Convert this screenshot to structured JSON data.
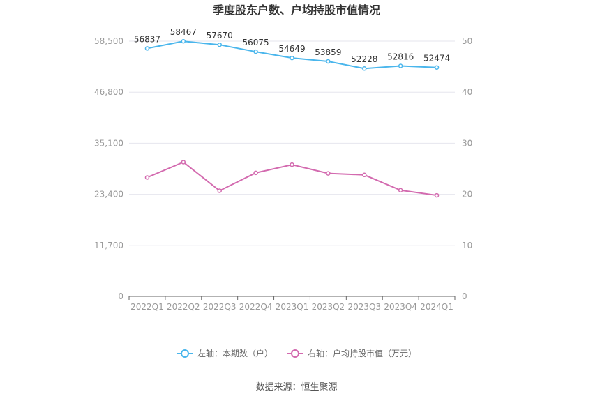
{
  "chart_data": {
    "type": "line",
    "title": "季度股东户数、户均持股市值情况",
    "categories": [
      "2022Q1",
      "2022Q2",
      "2022Q3",
      "2022Q4",
      "2023Q1",
      "2023Q2",
      "2023Q3",
      "2023Q4",
      "2024Q1"
    ],
    "left_axis": {
      "ticks": [
        "0",
        "11,700",
        "23,400",
        "35,100",
        "46,800",
        "58,500"
      ],
      "ylim": [
        0,
        58500
      ]
    },
    "right_axis": {
      "ticks": [
        "0",
        "10",
        "20",
        "30",
        "40",
        "50"
      ],
      "ylim": [
        0,
        50
      ]
    },
    "grid": true,
    "legend_position": "bottom",
    "series": [
      {
        "name": "左轴：本期数（户）",
        "axis": "left",
        "color": "#4ab6ec",
        "values": [
          56837,
          58467,
          57670,
          56075,
          54649,
          53859,
          52228,
          52816,
          52474
        ],
        "labels": [
          "56837",
          "58467",
          "57670",
          "56075",
          "54649",
          "53859",
          "52228",
          "52816",
          "52474"
        ]
      },
      {
        "name": "右轴：户均持股市值（万元）",
        "axis": "right",
        "color": "#d36aaf",
        "values": [
          23.3,
          26.3,
          20.7,
          24.2,
          25.8,
          24.1,
          23.8,
          20.8,
          19.8
        ]
      }
    ]
  },
  "footer": {
    "source": "数据来源：恒生聚源"
  }
}
